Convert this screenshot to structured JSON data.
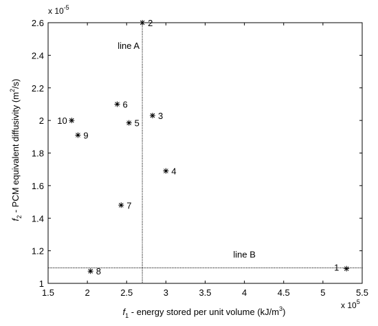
{
  "chart_data": {
    "type": "scatter",
    "title": "",
    "xlabel": "f1 - energy stored per unit volume (kJ/m3)",
    "xlabel_parts": {
      "main": "f",
      "sub": "1",
      "rest": " - energy stored per unit volume (kJ/m",
      "sup": "3",
      "end": ")"
    },
    "ylabel": "f2 - PCM equivalent diffusivity (m2/s)",
    "ylabel_parts": {
      "main": "f",
      "sub": "2",
      "rest": " - PCM equivalent diffusivity (m",
      "sup": "2",
      "end": "/s)"
    },
    "x_multiplier": {
      "base": "x 10",
      "exp": "5"
    },
    "y_multiplier": {
      "base": "x 10",
      "exp": "-5"
    },
    "xlim": [
      1.5,
      5.5
    ],
    "ylim": [
      1.0,
      2.6
    ],
    "x_ticks": [
      "1.5",
      "2",
      "2.5",
      "3",
      "3.5",
      "4",
      "4.5",
      "5",
      "5.5"
    ],
    "y_ticks": [
      "1",
      "1.2",
      "1.4",
      "1.6",
      "1.8",
      "2",
      "2.2",
      "2.4",
      "2.6"
    ],
    "grid": false,
    "marker": "asterisk",
    "points": [
      {
        "label": "1",
        "x": 5.3,
        "y": 1.09
      },
      {
        "label": "2",
        "x": 2.7,
        "y": 2.6
      },
      {
        "label": "3",
        "x": 2.83,
        "y": 2.03
      },
      {
        "label": "4",
        "x": 3.0,
        "y": 1.69
      },
      {
        "label": "5",
        "x": 2.53,
        "y": 1.985
      },
      {
        "label": "6",
        "x": 2.38,
        "y": 2.1
      },
      {
        "label": "7",
        "x": 2.43,
        "y": 1.48
      },
      {
        "label": "8",
        "x": 2.04,
        "y": 1.075
      },
      {
        "label": "9",
        "x": 1.88,
        "y": 1.91
      },
      {
        "label": "10",
        "x": 1.8,
        "y": 2.0
      }
    ],
    "reference_lines": [
      {
        "name": "line A",
        "orientation": "vertical",
        "value": 2.7,
        "label_y": 2.46
      },
      {
        "name": "line B",
        "orientation": "horizontal",
        "value": 1.095,
        "label_x": 4.0
      }
    ]
  }
}
